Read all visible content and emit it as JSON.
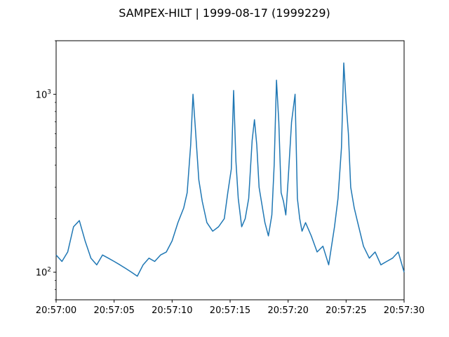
{
  "chart_data": {
    "type": "line",
    "title": "SAMPEX-HILT | 1999-08-17 (1999229)",
    "xlabel": "",
    "ylabel": "",
    "y_scale": "log",
    "ylim": [
      70,
      2000
    ],
    "y_ticks": [
      {
        "value": 100,
        "base": "10",
        "exp": "2"
      },
      {
        "value": 1000,
        "base": "10",
        "exp": "3"
      }
    ],
    "xlim_seconds": [
      0,
      30
    ],
    "x_ticks": [
      {
        "value": 0,
        "label": "20:57:00"
      },
      {
        "value": 5,
        "label": "20:57:05"
      },
      {
        "value": 10,
        "label": "20:57:10"
      },
      {
        "value": 15,
        "label": "20:57:15"
      },
      {
        "value": 20,
        "label": "20:57:20"
      },
      {
        "value": 25,
        "label": "20:57:25"
      },
      {
        "value": 30,
        "label": "20:57:30"
      }
    ],
    "grid": false,
    "line_color": "#1f77b4",
    "series": [
      {
        "x": [
          0.0,
          0.5,
          1.0,
          1.5,
          2.0,
          2.5,
          3.0,
          3.5,
          4.0,
          4.5,
          5.0,
          5.5,
          6.0,
          6.5,
          7.0,
          7.5,
          8.0,
          8.5,
          9.0,
          9.5,
          10.0,
          10.5,
          11.0,
          11.3,
          11.6,
          11.8,
          12.0,
          12.3,
          12.6,
          13.0,
          13.5,
          14.0,
          14.5,
          14.8,
          15.1,
          15.3,
          15.5,
          15.7,
          16.0,
          16.3,
          16.6,
          16.9,
          17.1,
          17.3,
          17.5,
          17.7,
          18.0,
          18.3,
          18.6,
          18.8,
          19.0,
          19.2,
          19.4,
          19.6,
          19.8,
          20.0,
          20.3,
          20.6,
          20.8,
          21.0,
          21.2,
          21.5,
          22.0,
          22.5,
          23.0,
          23.5,
          24.0,
          24.3,
          24.6,
          24.8,
          25.0,
          25.2,
          25.4,
          25.7,
          26.0,
          26.5,
          27.0,
          27.5,
          28.0,
          28.5,
          29.0,
          29.5,
          30.0
        ],
        "y": [
          125,
          115,
          130,
          180,
          195,
          150,
          120,
          110,
          125,
          120,
          115,
          110,
          105,
          100,
          95,
          110,
          120,
          115,
          125,
          130,
          150,
          190,
          230,
          280,
          520,
          1000,
          650,
          330,
          250,
          190,
          170,
          180,
          200,
          280,
          380,
          1050,
          420,
          260,
          180,
          200,
          260,
          550,
          720,
          520,
          300,
          250,
          190,
          160,
          210,
          400,
          1200,
          700,
          280,
          250,
          210,
          330,
          700,
          1000,
          260,
          200,
          170,
          190,
          160,
          130,
          140,
          110,
          180,
          260,
          500,
          1500,
          900,
          600,
          300,
          230,
          190,
          140,
          120,
          130,
          110,
          115,
          120,
          130,
          100
        ]
      }
    ]
  }
}
